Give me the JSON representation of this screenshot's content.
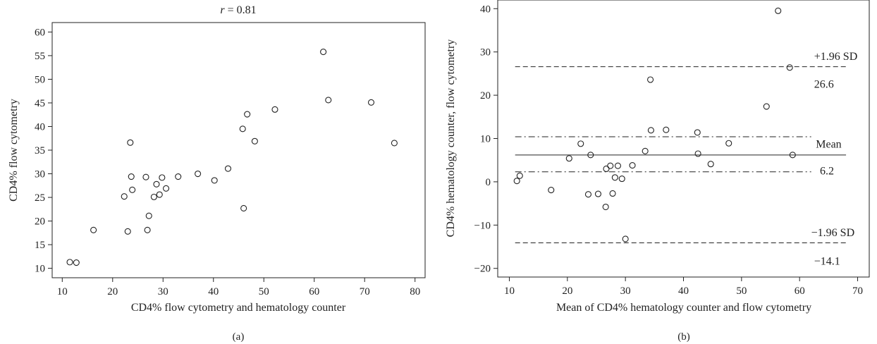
{
  "chart_data": [
    {
      "type": "scatter",
      "panel_label": "(a)",
      "title_var": "r",
      "title_rest": " = 0.81",
      "xlabel": "CD4% flow cytometry and hematology counter",
      "ylabel": "CD4% flow cytometry",
      "xlim": [
        8,
        82
      ],
      "ylim": [
        8,
        62
      ],
      "xticks": [
        10,
        20,
        30,
        40,
        50,
        60,
        70,
        80
      ],
      "yticks": [
        10,
        15,
        20,
        25,
        30,
        35,
        40,
        45,
        50,
        55,
        60
      ],
      "grid": false,
      "points": [
        {
          "x": 11.5,
          "y": 11.3
        },
        {
          "x": 12.8,
          "y": 11.2
        },
        {
          "x": 16.2,
          "y": 18.1
        },
        {
          "x": 22.3,
          "y": 25.2
        },
        {
          "x": 23.0,
          "y": 17.8
        },
        {
          "x": 23.5,
          "y": 36.6
        },
        {
          "x": 23.7,
          "y": 29.4
        },
        {
          "x": 23.9,
          "y": 26.6
        },
        {
          "x": 26.6,
          "y": 29.3
        },
        {
          "x": 26.9,
          "y": 18.1
        },
        {
          "x": 27.2,
          "y": 21.1
        },
        {
          "x": 28.2,
          "y": 25.1
        },
        {
          "x": 28.7,
          "y": 27.8
        },
        {
          "x": 29.3,
          "y": 25.6
        },
        {
          "x": 29.8,
          "y": 29.2
        },
        {
          "x": 30.6,
          "y": 26.9
        },
        {
          "x": 33.0,
          "y": 29.4
        },
        {
          "x": 36.9,
          "y": 30.0
        },
        {
          "x": 40.2,
          "y": 28.6
        },
        {
          "x": 42.9,
          "y": 31.1
        },
        {
          "x": 45.8,
          "y": 39.5
        },
        {
          "x": 46.0,
          "y": 22.7
        },
        {
          "x": 46.7,
          "y": 42.6
        },
        {
          "x": 48.2,
          "y": 36.9
        },
        {
          "x": 52.2,
          "y": 43.6
        },
        {
          "x": 61.8,
          "y": 55.8
        },
        {
          "x": 62.8,
          "y": 45.6
        },
        {
          "x": 71.3,
          "y": 45.1
        },
        {
          "x": 75.9,
          "y": 36.5
        }
      ]
    },
    {
      "type": "scatter",
      "panel_label": "(b)",
      "xlabel": "Mean of CD4% hematology counter and flow cytometry",
      "ylabel": "CD4% hematology counter, flow cytometry",
      "xlim": [
        8,
        72
      ],
      "ylim": [
        -22,
        42
      ],
      "xticks": [
        10,
        20,
        30,
        40,
        50,
        60,
        70
      ],
      "yticks": [
        -20,
        -10,
        0,
        10,
        20,
        30,
        40
      ],
      "grid": false,
      "reference_lines": [
        {
          "y": 26.6,
          "style": "dashed",
          "x_from": 11,
          "x_to": 68
        },
        {
          "y": 10.4,
          "style": "dashdot",
          "x_from": 11,
          "x_to": 62
        },
        {
          "y": 6.2,
          "style": "solid",
          "x_from": 11,
          "x_to": 68
        },
        {
          "y": 2.3,
          "style": "dashdot",
          "x_from": 11,
          "x_to": 62
        },
        {
          "y": -14.1,
          "style": "dashed",
          "x_from": 11,
          "x_to": 68
        }
      ],
      "annotations": [
        {
          "text": "+1.96 SD",
          "x": 62.5,
          "y": 29.0
        },
        {
          "text": "26.6",
          "x": 62.5,
          "y": 22.5
        },
        {
          "text": "Mean",
          "x": 62.8,
          "y": 8.7
        },
        {
          "text": "6.2",
          "x": 63.5,
          "y": 2.5
        },
        {
          "text": "−1.96 SD",
          "x": 62.0,
          "y": -11.7
        },
        {
          "text": "−14.1",
          "x": 62.5,
          "y": -18.3
        }
      ],
      "points": [
        {
          "x": 11.3,
          "y": 0.2
        },
        {
          "x": 11.8,
          "y": 1.4
        },
        {
          "x": 17.2,
          "y": -1.9
        },
        {
          "x": 20.3,
          "y": 5.4
        },
        {
          "x": 22.3,
          "y": 8.8
        },
        {
          "x": 23.6,
          "y": -2.9
        },
        {
          "x": 24.0,
          "y": 6.2
        },
        {
          "x": 25.3,
          "y": -2.8
        },
        {
          "x": 26.6,
          "y": -5.8
        },
        {
          "x": 26.7,
          "y": 3.0
        },
        {
          "x": 27.4,
          "y": 3.7
        },
        {
          "x": 27.8,
          "y": -2.7
        },
        {
          "x": 28.2,
          "y": 1.0
        },
        {
          "x": 28.7,
          "y": 3.7
        },
        {
          "x": 29.4,
          "y": 0.7
        },
        {
          "x": 30.0,
          "y": -13.2
        },
        {
          "x": 31.2,
          "y": 3.8
        },
        {
          "x": 33.4,
          "y": 7.1
        },
        {
          "x": 34.3,
          "y": 23.6
        },
        {
          "x": 34.4,
          "y": 11.9
        },
        {
          "x": 37.0,
          "y": 12.0
        },
        {
          "x": 42.4,
          "y": 11.4
        },
        {
          "x": 42.5,
          "y": 6.5
        },
        {
          "x": 44.7,
          "y": 4.1
        },
        {
          "x": 47.8,
          "y": 8.9
        },
        {
          "x": 54.3,
          "y": 17.4
        },
        {
          "x": 56.3,
          "y": 39.5
        },
        {
          "x": 58.3,
          "y": 26.4
        },
        {
          "x": 58.8,
          "y": 6.2
        }
      ]
    }
  ]
}
